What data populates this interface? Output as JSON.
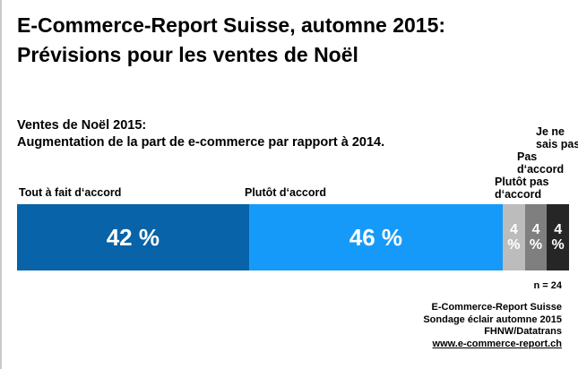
{
  "title": "E-Commerce-Report Suisse, automne 2015:\nPrévisions pour les ventes de Noël",
  "subtitle": "Ventes de Noël 2015:\nAugmentation de la part de e-commerce par rapport à 2014.",
  "n_label": "n = 24",
  "source": {
    "line1": "E-Commerce-Report Suisse",
    "line2": "Sondage éclair automne 2015",
    "line3": "FHNW/Datatrans",
    "link": "www.e-commerce-report.ch"
  },
  "chart_data": {
    "type": "bar",
    "variant": "horizontal-stacked-single-bar",
    "title": "Ventes de Noël 2015: Augmentation de la part de e-commerce par rapport à 2014.",
    "unit": "%",
    "n": 24,
    "xlim": [
      0,
      100
    ],
    "grid": false,
    "legend_position": "labels-above-and-beside-bar",
    "categories": [
      "Tout à fait d‘accord",
      "Plutôt d‘accord",
      "Plutôt pas d‘accord",
      "Pas d‘accord",
      "Je ne sais pas"
    ],
    "values": [
      42,
      46,
      4,
      4,
      4
    ],
    "segments": [
      {
        "label": "Tout à fait d‘accord",
        "value": 42,
        "display": "42 %",
        "color": "#0863a8"
      },
      {
        "label": "Plutôt d‘accord",
        "value": 46,
        "display": "46 %",
        "color": "#169afa"
      },
      {
        "label": "Plutôt pas d‘accord",
        "value": 4,
        "display": "4 %",
        "color": "#bcbcbc"
      },
      {
        "label": "Pas d‘accord",
        "value": 4,
        "display": "4 %",
        "color": "#7f7f7f"
      },
      {
        "label": "Je ne sais pas",
        "value": 4,
        "display": "4 %",
        "color": "#262626"
      }
    ]
  }
}
